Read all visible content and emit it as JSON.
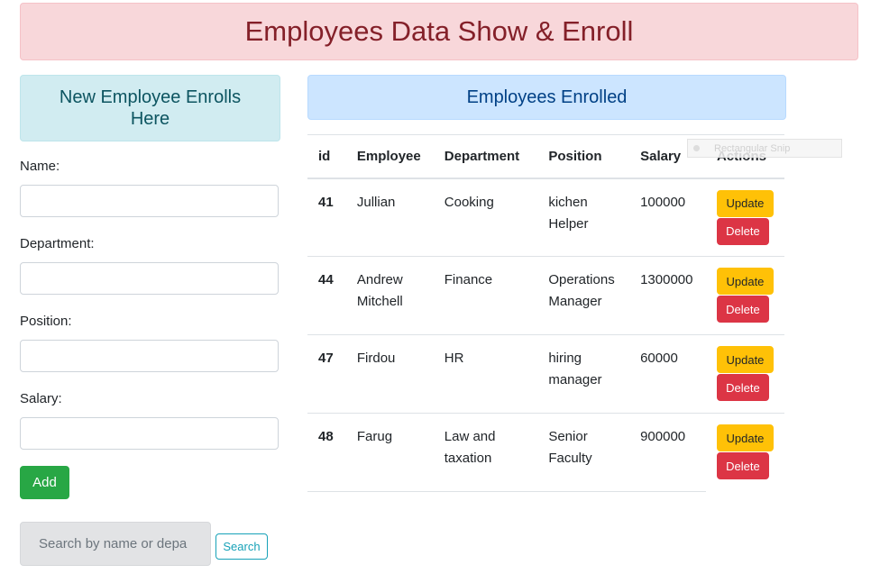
{
  "banner": {
    "title": "Employees Data Show & Enroll"
  },
  "enroll_panel": {
    "title": "New Employee Enrolls Here",
    "fields": [
      {
        "label": "Name:",
        "value": ""
      },
      {
        "label": "Department:",
        "value": ""
      },
      {
        "label": "Position:",
        "value": ""
      },
      {
        "label": "Salary:",
        "value": ""
      }
    ],
    "add_label": "Add"
  },
  "search": {
    "placeholder": "Search by name or depa",
    "button_label": "Search"
  },
  "enrolled_panel": {
    "title": "Employees Enrolled",
    "columns": [
      "id",
      "Employee",
      "Department",
      "Position",
      "Salary",
      "Actions"
    ],
    "rows": [
      {
        "id": "41",
        "employee": "Jullian",
        "department": "Cooking",
        "position": "kichen Helper",
        "salary": "100000",
        "update_label": "Update",
        "delete_label": "Delete"
      },
      {
        "id": "44",
        "employee": "Andrew Mitchell",
        "department": "Finance",
        "position": "Operations Manager",
        "salary": "1300000",
        "update_label": "Update",
        "delete_label": "Delete"
      },
      {
        "id": "47",
        "employee": "Firdou",
        "department": "HR",
        "position": "hiring manager",
        "salary": "60000",
        "update_label": "Update",
        "delete_label": "Delete"
      },
      {
        "id": "48",
        "employee": "Farug",
        "department": "Law and taxation",
        "position": "Senior Faculty",
        "salary": "900000",
        "update_label": "Update",
        "delete_label": "Delete"
      }
    ]
  },
  "overlay": {
    "snip_label": "Rectangular Snip"
  },
  "colors": {
    "banner_bg": "#f8d7da",
    "banner_text": "#842029",
    "info_bg": "#d1ecf1",
    "primary_bg": "#cce5ff",
    "success": "#28a745",
    "warning": "#ffc107",
    "danger": "#dc3545"
  }
}
